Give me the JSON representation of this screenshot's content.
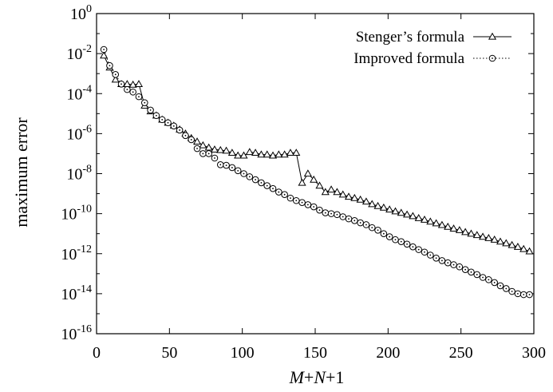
{
  "chart_data": {
    "type": "line",
    "xlabel": {
      "parts": [
        {
          "text": "M",
          "italic": true
        },
        {
          "text": "+",
          "italic": false
        },
        {
          "text": "N",
          "italic": true
        },
        {
          "text": "+1",
          "italic": false
        }
      ]
    },
    "ylabel": "maximum error",
    "xlim": [
      0,
      300
    ],
    "ylim_exponent": [
      -16,
      0
    ],
    "y_scale": "log",
    "x_ticks": [
      "0",
      "50",
      "100",
      "150",
      "200",
      "250",
      "300"
    ],
    "y_ticks": [
      {
        "base": "10",
        "exp": "0"
      },
      {
        "base": "10",
        "exp": "-2"
      },
      {
        "base": "10",
        "exp": "-4"
      },
      {
        "base": "10",
        "exp": "-6"
      },
      {
        "base": "10",
        "exp": "-8"
      },
      {
        "base": "10",
        "exp": "-10"
      },
      {
        "base": "10",
        "exp": "-12"
      },
      {
        "base": "10",
        "exp": "-14"
      },
      {
        "base": "10",
        "exp": "-16"
      }
    ],
    "grid": false,
    "legend_position": "top-right",
    "series": [
      {
        "name": "Stenger’s formula",
        "marker": "triangle",
        "line": "solid",
        "x": [
          5,
          9,
          13,
          17,
          21,
          25,
          29,
          33,
          37,
          41,
          45,
          49,
          53,
          57,
          61,
          65,
          69,
          73,
          77,
          81,
          85,
          89,
          93,
          97,
          101,
          105,
          109,
          113,
          117,
          121,
          125,
          129,
          133,
          137,
          141,
          145,
          149,
          153,
          157,
          161,
          165,
          169,
          173,
          177,
          181,
          185,
          189,
          193,
          197,
          201,
          205,
          209,
          213,
          217,
          221,
          225,
          229,
          233,
          237,
          241,
          245,
          249,
          253,
          257,
          261,
          265,
          269,
          273,
          277,
          281,
          285,
          289,
          293,
          297
        ],
        "y": [
          0.008,
          0.002,
          0.0005,
          0.0003,
          0.0003,
          0.00028,
          0.0003,
          2.5e-05,
          1.3e-05,
          8e-06,
          5e-06,
          3.5e-06,
          2.5e-06,
          1.6e-06,
          1e-06,
          6e-07,
          4e-07,
          2.6e-07,
          2e-07,
          1.6e-07,
          1.5e-07,
          1.4e-07,
          1.1e-07,
          8e-08,
          8e-08,
          1.2e-07,
          1.1e-07,
          9e-08,
          9e-08,
          8e-08,
          9e-08,
          9e-08,
          1.1e-07,
          1.1e-07,
          3.5e-09,
          1e-08,
          5e-09,
          2.5e-09,
          1.2e-09,
          1.6e-09,
          1.2e-09,
          9e-10,
          7e-10,
          6e-10,
          5e-10,
          4e-10,
          3e-10,
          2.4e-10,
          2e-10,
          1.6e-10,
          1.3e-10,
          1.1e-10,
          9e-11,
          7.5e-11,
          6e-11,
          5e-11,
          4e-11,
          3.3e-11,
          2.7e-11,
          2.2e-11,
          1.8e-11,
          1.5e-11,
          1.2e-11,
          1e-11,
          8.5e-12,
          7e-12,
          6e-12,
          5e-12,
          4e-12,
          3.3e-12,
          2.7e-12,
          2.2e-12,
          1.7e-12,
          1.3e-12
        ]
      },
      {
        "name": "Improved formula",
        "marker": "circle",
        "line": "dotted",
        "x": [
          5,
          9,
          13,
          17,
          21,
          25,
          29,
          33,
          37,
          41,
          45,
          49,
          53,
          57,
          61,
          65,
          69,
          73,
          77,
          81,
          85,
          89,
          93,
          97,
          101,
          105,
          109,
          113,
          117,
          121,
          125,
          129,
          133,
          137,
          141,
          145,
          149,
          153,
          157,
          161,
          165,
          169,
          173,
          177,
          181,
          185,
          189,
          193,
          197,
          201,
          205,
          209,
          213,
          217,
          221,
          225,
          229,
          233,
          237,
          241,
          245,
          249,
          253,
          257,
          261,
          265,
          269,
          273,
          277,
          281,
          285,
          289,
          293,
          297
        ],
        "y": [
          0.016,
          0.0025,
          0.0009,
          0.0003,
          0.00016,
          0.00012,
          7e-05,
          3.5e-05,
          1.5e-05,
          8e-06,
          5e-06,
          3.5e-06,
          2.4e-06,
          1.5e-06,
          8e-07,
          5e-07,
          1.8e-07,
          1e-07,
          1e-07,
          6e-08,
          2.8e-08,
          2.6e-08,
          2e-08,
          1.4e-08,
          1e-08,
          7e-09,
          5e-09,
          3.5e-09,
          2.5e-09,
          1.8e-09,
          1.2e-09,
          9e-10,
          6e-10,
          4.5e-10,
          3.6e-10,
          2.8e-10,
          2.2e-10,
          1.5e-10,
          1.1e-10,
          1e-10,
          9e-11,
          7e-11,
          5.5e-11,
          4.5e-11,
          3.5e-11,
          2.8e-11,
          2e-11,
          1.5e-11,
          1e-11,
          7e-12,
          5e-12,
          4e-12,
          3e-12,
          2.2e-12,
          1.6e-12,
          1.2e-12,
          8.5e-13,
          6e-13,
          4.5e-13,
          3.5e-13,
          2.8e-13,
          2.2e-13,
          1.6e-13,
          1.2e-13,
          9e-14,
          6.5e-14,
          5e-14,
          3.6e-14,
          2.5e-14,
          1.8e-14,
          1.3e-14,
          1e-14,
          9e-15,
          9e-15
        ]
      }
    ]
  }
}
